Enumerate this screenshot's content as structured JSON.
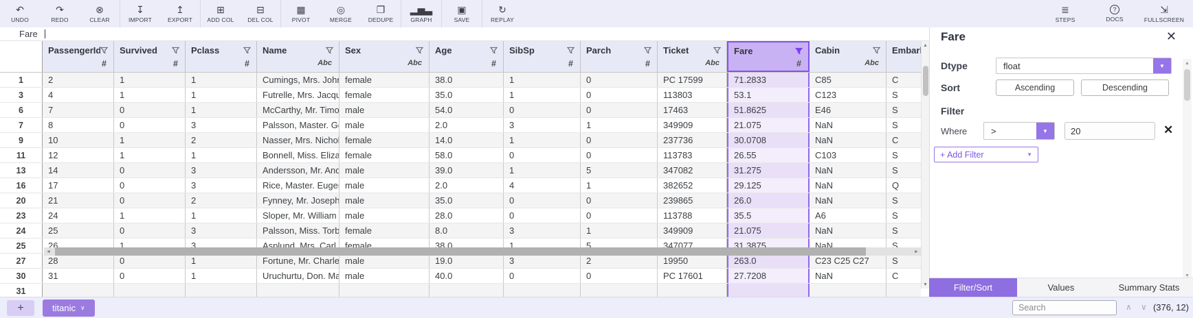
{
  "toolbar": {
    "left_items": [
      {
        "name": "undo",
        "label": "UNDO",
        "glyph": "↶"
      },
      {
        "name": "redo",
        "label": "REDO",
        "glyph": "↷"
      },
      {
        "name": "clear",
        "label": "CLEAR",
        "glyph": "⊗",
        "divider_after": true
      },
      {
        "name": "import",
        "label": "IMPORT",
        "glyph": "↧"
      },
      {
        "name": "export",
        "label": "EXPORT",
        "glyph": "↥",
        "divider_after": true
      },
      {
        "name": "add-col",
        "label": "ADD COL",
        "glyph": "⊞"
      },
      {
        "name": "del-col",
        "label": "DEL COL",
        "glyph": "⊟",
        "divider_after": true
      },
      {
        "name": "pivot",
        "label": "PIVOT",
        "glyph": "▦"
      },
      {
        "name": "merge",
        "label": "MERGE",
        "glyph": "◎"
      },
      {
        "name": "dedupe",
        "label": "DEDUPE",
        "glyph": "❐",
        "divider_after": true
      },
      {
        "name": "graph",
        "label": "GRAPH",
        "glyph": "▂▅▃",
        "divider_after": true
      },
      {
        "name": "save",
        "label": "SAVE",
        "glyph": "▣",
        "divider_after": true
      },
      {
        "name": "replay",
        "label": "REPLAY",
        "glyph": "↻"
      }
    ],
    "right_items": [
      {
        "name": "steps",
        "label": "STEPS",
        "glyph": "≣"
      },
      {
        "name": "docs",
        "label": "DOCS",
        "glyph": "?",
        "circled": true
      },
      {
        "name": "fullscreen",
        "label": "FULLSCREEN",
        "glyph": "⇲"
      }
    ]
  },
  "formula_bar": {
    "value": "Fare"
  },
  "grid": {
    "columns": [
      {
        "label": "PassengerId",
        "type": "#"
      },
      {
        "label": "Survived",
        "type": "#"
      },
      {
        "label": "Pclass",
        "type": "#"
      },
      {
        "label": "Name",
        "type": "Abc"
      },
      {
        "label": "Sex",
        "type": "Abc"
      },
      {
        "label": "Age",
        "type": "#"
      },
      {
        "label": "SibSp",
        "type": "#"
      },
      {
        "label": "Parch",
        "type": "#"
      },
      {
        "label": "Ticket",
        "type": "Abc"
      },
      {
        "label": "Fare",
        "type": "#",
        "selected": true,
        "filter_active": true
      },
      {
        "label": "Cabin",
        "type": "Abc"
      },
      {
        "label": "Embarked"
      }
    ],
    "rows": [
      {
        "index": "1",
        "cells": [
          "2",
          "1",
          "1",
          "Cumings, Mrs. John B",
          "female",
          "38.0",
          "1",
          "0",
          "PC 17599",
          "71.2833",
          "C85",
          "C"
        ]
      },
      {
        "index": "3",
        "cells": [
          "4",
          "1",
          "1",
          "Futrelle, Mrs. Jacque",
          "female",
          "35.0",
          "1",
          "0",
          "113803",
          "53.1",
          "C123",
          "S"
        ]
      },
      {
        "index": "6",
        "cells": [
          "7",
          "0",
          "1",
          "McCarthy, Mr. Timoth",
          "male",
          "54.0",
          "0",
          "0",
          "17463",
          "51.8625",
          "E46",
          "S"
        ]
      },
      {
        "index": "7",
        "cells": [
          "8",
          "0",
          "3",
          "Palsson, Master. Gos",
          "male",
          "2.0",
          "3",
          "1",
          "349909",
          "21.075",
          "NaN",
          "S"
        ]
      },
      {
        "index": "9",
        "cells": [
          "10",
          "1",
          "2",
          "Nasser, Mrs. Nichola",
          "female",
          "14.0",
          "1",
          "0",
          "237736",
          "30.0708",
          "NaN",
          "C"
        ]
      },
      {
        "index": "11",
        "cells": [
          "12",
          "1",
          "1",
          "Bonnell, Miss. Elizab",
          "female",
          "58.0",
          "0",
          "0",
          "113783",
          "26.55",
          "C103",
          "S"
        ]
      },
      {
        "index": "13",
        "cells": [
          "14",
          "0",
          "3",
          "Andersson, Mr. Ande",
          "male",
          "39.0",
          "1",
          "5",
          "347082",
          "31.275",
          "NaN",
          "S"
        ]
      },
      {
        "index": "16",
        "cells": [
          "17",
          "0",
          "3",
          "Rice, Master. Eugene",
          "male",
          "2.0",
          "4",
          "1",
          "382652",
          "29.125",
          "NaN",
          "Q"
        ]
      },
      {
        "index": "20",
        "cells": [
          "21",
          "0",
          "2",
          "Fynney, Mr. Joseph J",
          "male",
          "35.0",
          "0",
          "0",
          "239865",
          "26.0",
          "NaN",
          "S"
        ]
      },
      {
        "index": "23",
        "cells": [
          "24",
          "1",
          "1",
          "Sloper, Mr. William Th",
          "male",
          "28.0",
          "0",
          "0",
          "113788",
          "35.5",
          "A6",
          "S"
        ]
      },
      {
        "index": "24",
        "cells": [
          "25",
          "0",
          "3",
          "Palsson, Miss. Torbo",
          "female",
          "8.0",
          "3",
          "1",
          "349909",
          "21.075",
          "NaN",
          "S"
        ]
      },
      {
        "index": "25",
        "cells": [
          "26",
          "1",
          "3",
          "Asplund, Mrs. Carl O",
          "female",
          "38.0",
          "1",
          "5",
          "347077",
          "31.3875",
          "NaN",
          "S"
        ]
      },
      {
        "index": "27",
        "cells": [
          "28",
          "0",
          "1",
          "Fortune, Mr. Charles",
          "male",
          "19.0",
          "3",
          "2",
          "19950",
          "263.0",
          "C23 C25 C27",
          "S"
        ]
      },
      {
        "index": "30",
        "cells": [
          "31",
          "0",
          "1",
          "Uruchurtu, Don. Mani",
          "male",
          "40.0",
          "0",
          "0",
          "PC 17601",
          "27.7208",
          "NaN",
          "C"
        ]
      }
    ],
    "next_row_index": "31"
  },
  "panel": {
    "title": "Fare",
    "close_glyph": "✕",
    "dtype_label": "Dtype",
    "dtype_value": "float",
    "dtype_caret": "▼",
    "sort_label": "Sort",
    "sort_ascending": "Ascending",
    "sort_descending": "Descending",
    "filter_label": "Filter",
    "where_label": "Where",
    "operator": ">",
    "operator_caret": "▼",
    "filter_value": "20",
    "remove_filter_glyph": "✕",
    "add_filter_label": "+ Add Filter",
    "add_filter_caret": "▼",
    "tabs": [
      {
        "label": "Filter/Sort",
        "active": true
      },
      {
        "label": "Values",
        "active": false
      },
      {
        "label": "Summary Stats",
        "active": false
      }
    ]
  },
  "bottom_bar": {
    "add_tab_glyph": "+",
    "sheet_tab_label": "titanic",
    "sheet_tab_caret": "∨",
    "search_placeholder": "Search",
    "prev_glyph": "∧",
    "next_glyph": "∨",
    "shape": "(376, 12)"
  },
  "colors": {
    "accent": "#9575e8",
    "accent_dark": "#7a3ff0",
    "selected_column_header_bg": "#c9b2f4",
    "selected_column_header_border": "#8550e8",
    "fare_cell_tint": "#f3edfc",
    "active_tab_bg": "#8e6ee0",
    "sheet_tab_bg": "#9b7be0",
    "toolbar_bg": "#ecedf8",
    "grid_header_bg": "#e7eaf6",
    "bottom_bar_bg": "#eceefb"
  }
}
